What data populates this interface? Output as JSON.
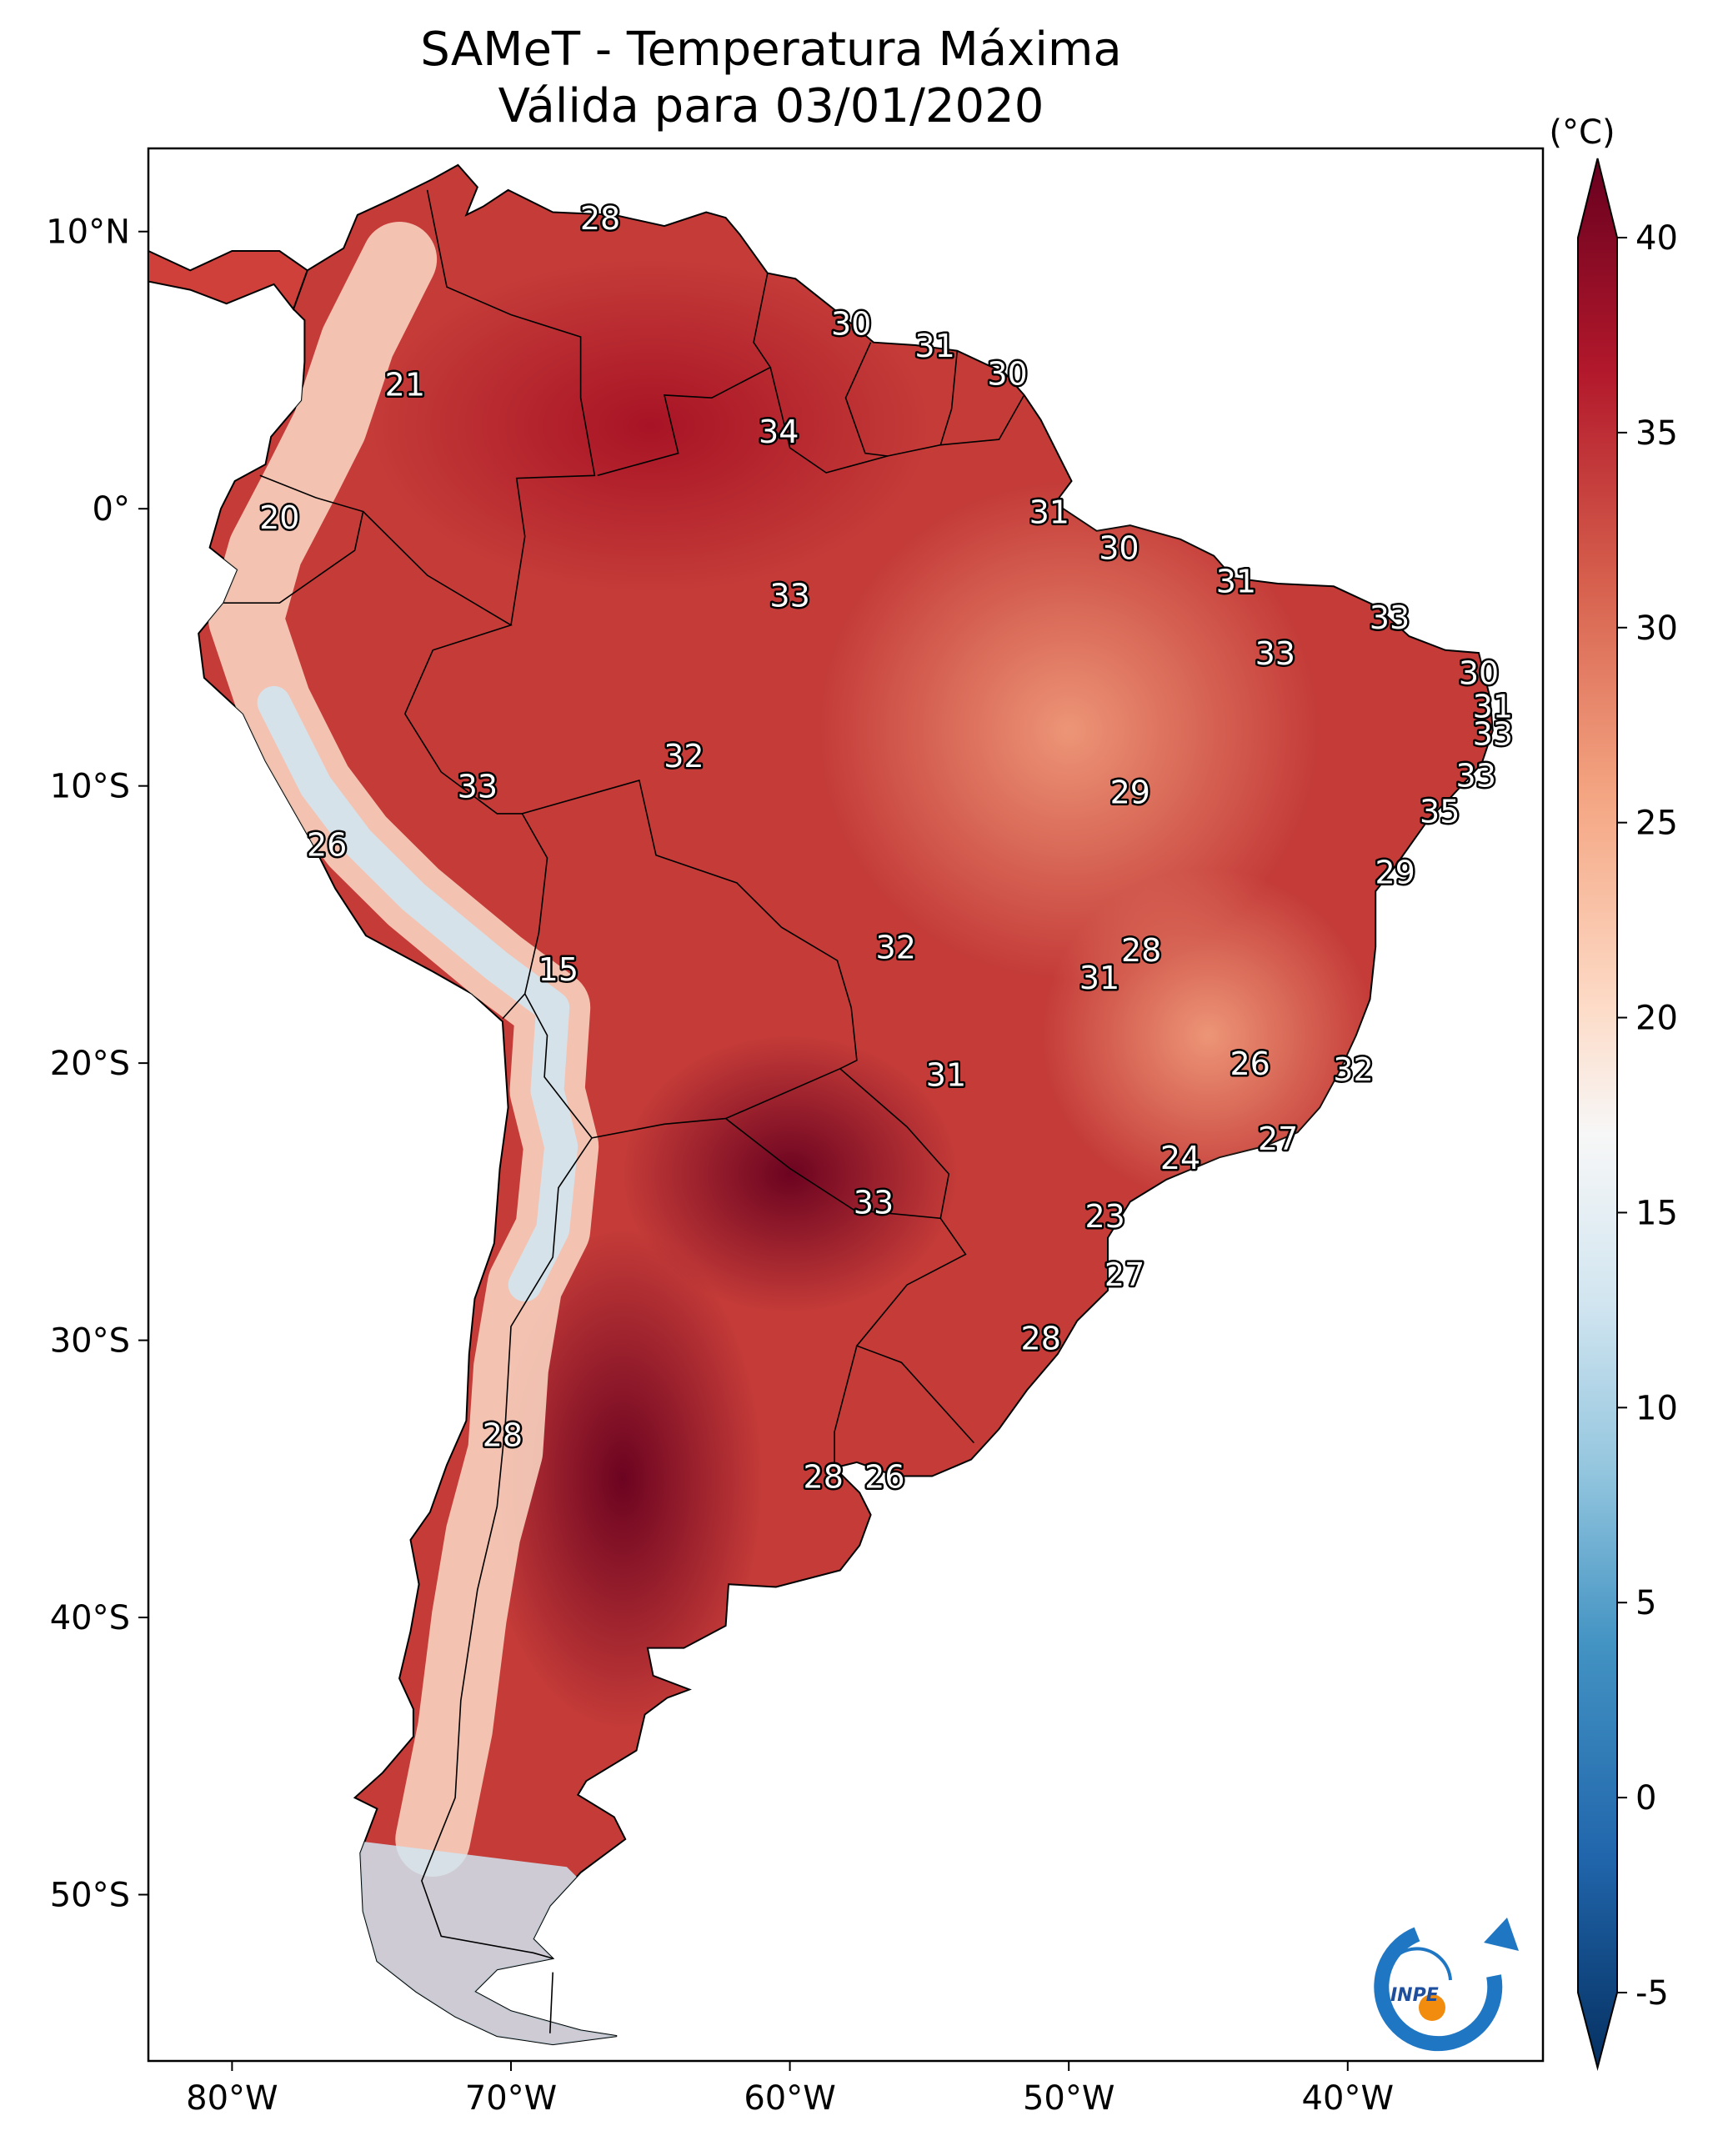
{
  "title": {
    "line1": "SAMeT - Temperatura Máxima",
    "line2": "Válida para 03/01/2020"
  },
  "map": {
    "lon_ticks": [
      {
        "label": "80°W",
        "lon": -80
      },
      {
        "label": "70°W",
        "lon": -70
      },
      {
        "label": "60°W",
        "lon": -60
      },
      {
        "label": "50°W",
        "lon": -50
      },
      {
        "label": "40°W",
        "lon": -40
      }
    ],
    "lat_ticks": [
      {
        "label": "10°N",
        "lat": 10
      },
      {
        "label": "0°",
        "lat": 0
      },
      {
        "label": "10°S",
        "lat": -10
      },
      {
        "label": "20°S",
        "lat": -20
      },
      {
        "label": "30°S",
        "lat": -30
      },
      {
        "label": "40°S",
        "lat": -40
      },
      {
        "label": "50°S",
        "lat": -50
      }
    ],
    "extent": {
      "lon_min": -83,
      "lon_max": -33,
      "lat_min": -56,
      "lat_max": 13
    }
  },
  "colorbar": {
    "unit_label": "(°C)",
    "min": -5,
    "max": 40,
    "ticks": [
      {
        "label": "40",
        "value": 40
      },
      {
        "label": "35",
        "value": 35
      },
      {
        "label": "30",
        "value": 30
      },
      {
        "label": "25",
        "value": 25
      },
      {
        "label": "20",
        "value": 20
      },
      {
        "label": "15",
        "value": 15
      },
      {
        "label": "10",
        "value": 10
      },
      {
        "label": "5",
        "value": 5
      },
      {
        "label": "0",
        "value": 0
      },
      {
        "label": "-5",
        "value": -5
      }
    ],
    "colors": {
      "c40": "#67001f",
      "c35": "#b2182b",
      "c30": "#d6604d",
      "c25": "#f4a582",
      "c20": "#fddbc7",
      "c17": "#f7f7f7",
      "c13": "#d1e5f0",
      "c9": "#92c5de",
      "c5": "#4393c3",
      "c0": "#2166ac",
      "cm5": "#053061"
    }
  },
  "labels": [
    {
      "text": "28",
      "lon": -66.8,
      "lat": 10.5
    },
    {
      "text": "21",
      "lon": -73.8,
      "lat": 4.5
    },
    {
      "text": "30",
      "lon": -57.8,
      "lat": 6.7
    },
    {
      "text": "31",
      "lon": -54.8,
      "lat": 5.9
    },
    {
      "text": "30",
      "lon": -52.2,
      "lat": 4.9
    },
    {
      "text": "34",
      "lon": -60.4,
      "lat": 2.8
    },
    {
      "text": "20",
      "lon": -78.3,
      "lat": -0.3
    },
    {
      "text": "31",
      "lon": -50.7,
      "lat": -0.1
    },
    {
      "text": "30",
      "lon": -48.2,
      "lat": -1.4
    },
    {
      "text": "33",
      "lon": -60.0,
      "lat": -3.1
    },
    {
      "text": "31",
      "lon": -44.0,
      "lat": -2.6
    },
    {
      "text": "33",
      "lon": -38.5,
      "lat": -3.9
    },
    {
      "text": "33",
      "lon": -42.6,
      "lat": -5.2
    },
    {
      "text": "30",
      "lon": -35.3,
      "lat": -5.9
    },
    {
      "text": "31",
      "lon": -34.8,
      "lat": -7.1
    },
    {
      "text": "33",
      "lon": -34.8,
      "lat": -8.1
    },
    {
      "text": "32",
      "lon": -63.8,
      "lat": -8.9
    },
    {
      "text": "33",
      "lon": -71.2,
      "lat": -10.0
    },
    {
      "text": "33",
      "lon": -35.4,
      "lat": -9.6
    },
    {
      "text": "29",
      "lon": -47.8,
      "lat": -10.2
    },
    {
      "text": "35",
      "lon": -36.7,
      "lat": -10.9
    },
    {
      "text": "26",
      "lon": -76.6,
      "lat": -12.1
    },
    {
      "text": "29",
      "lon": -38.3,
      "lat": -13.1
    },
    {
      "text": "32",
      "lon": -56.2,
      "lat": -15.8
    },
    {
      "text": "28",
      "lon": -47.4,
      "lat": -15.9
    },
    {
      "text": "31",
      "lon": -48.9,
      "lat": -16.9
    },
    {
      "text": "15",
      "lon": -68.3,
      "lat": -16.6
    },
    {
      "text": "26",
      "lon": -43.5,
      "lat": -20.0
    },
    {
      "text": "32",
      "lon": -39.8,
      "lat": -20.2
    },
    {
      "text": "31",
      "lon": -54.4,
      "lat": -20.4
    },
    {
      "text": "27",
      "lon": -42.5,
      "lat": -22.7
    },
    {
      "text": "24",
      "lon": -46.0,
      "lat": -23.4
    },
    {
      "text": "33",
      "lon": -57.0,
      "lat": -25.0
    },
    {
      "text": "23",
      "lon": -48.7,
      "lat": -25.5
    },
    {
      "text": "27",
      "lon": -48.0,
      "lat": -27.6
    },
    {
      "text": "28",
      "lon": -51.0,
      "lat": -29.9
    },
    {
      "text": "28",
      "lon": -70.3,
      "lat": -33.4
    },
    {
      "text": "28",
      "lon": -58.8,
      "lat": -34.9
    },
    {
      "text": "26",
      "lon": -56.6,
      "lat": -34.9
    }
  ],
  "logo": {
    "text": "INPE"
  }
}
